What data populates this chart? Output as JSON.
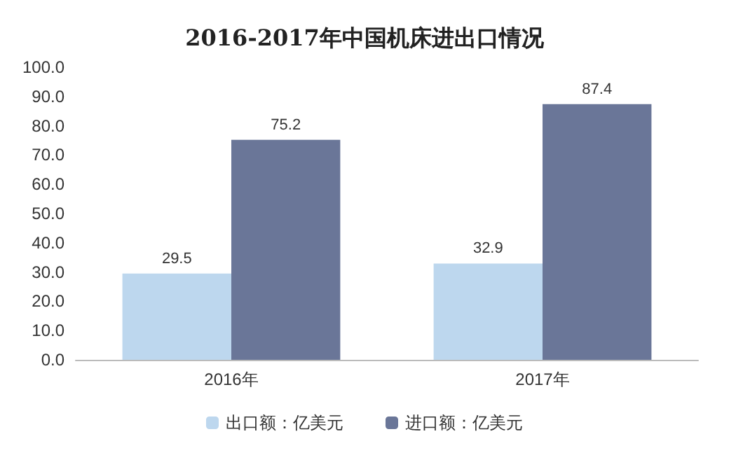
{
  "chart_data": {
    "type": "bar",
    "title": "2016-2017年中国机床进出口情况",
    "categories": [
      "2016年",
      "2017年"
    ],
    "series": [
      {
        "name": "出口额：亿美元",
        "color": "#bdd7ee",
        "values": [
          29.5,
          32.9
        ]
      },
      {
        "name": "进口额：亿美元",
        "color": "#6a7698",
        "values": [
          75.2,
          87.4
        ]
      }
    ],
    "ylim": [
      0,
      100
    ],
    "yticks": [
      {
        "value": 0,
        "label": "0.0"
      },
      {
        "value": 10,
        "label": "10.0"
      },
      {
        "value": 20,
        "label": "20.0"
      },
      {
        "value": 30,
        "label": "30.0"
      },
      {
        "value": 40,
        "label": "40.0"
      },
      {
        "value": 50,
        "label": "50.0"
      },
      {
        "value": 60,
        "label": "60.0"
      },
      {
        "value": 70,
        "label": "70.0"
      },
      {
        "value": 80,
        "label": "80.0"
      },
      {
        "value": 90,
        "label": "90.0"
      },
      {
        "value": 100,
        "label": "100.0"
      }
    ],
    "data_labels": true,
    "grid": false,
    "legend": "bottom"
  }
}
